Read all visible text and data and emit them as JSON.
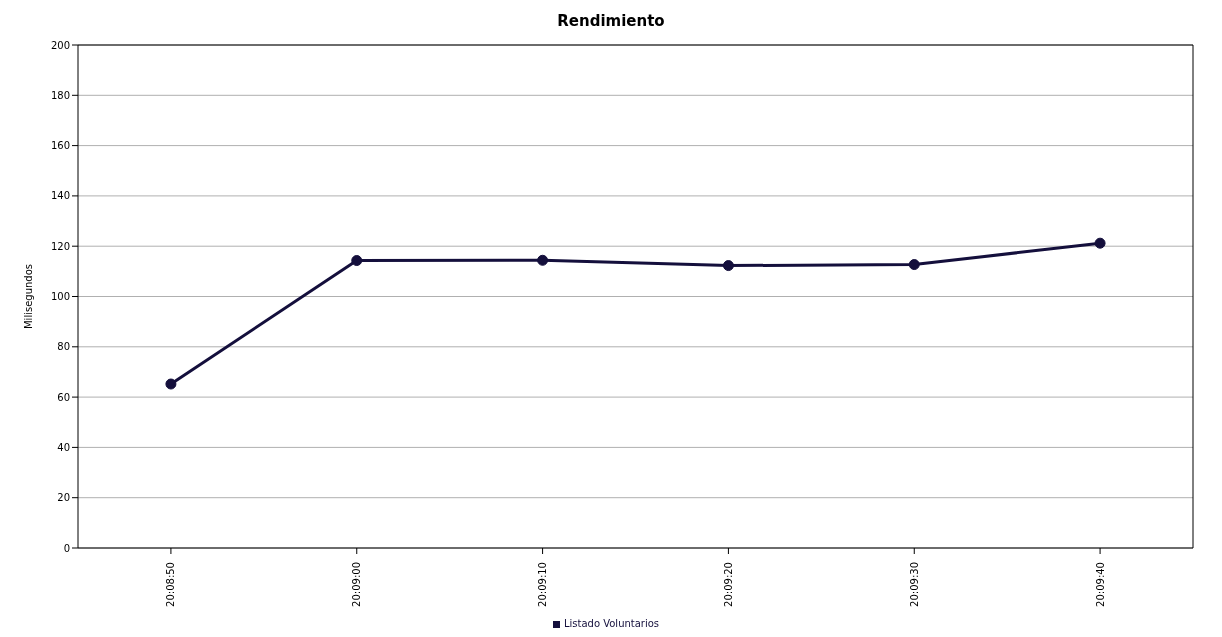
{
  "chart_data": {
    "type": "line",
    "title": "Rendimiento",
    "ylabel": "Milisegundos",
    "categories": [
      "20:08:50",
      "20:09:00",
      "20:09:10",
      "20:09:20",
      "20:09:30",
      "20:09:40"
    ],
    "series": [
      {
        "name": "Listado Voluntarios",
        "color": "#140f3c",
        "values": [
          65.2,
          114.3,
          114.4,
          112.3,
          112.7,
          121.2
        ]
      }
    ],
    "ylim": [
      0,
      200
    ],
    "yticks": [
      0,
      20,
      40,
      60,
      80,
      100,
      120,
      140,
      160,
      180,
      200
    ],
    "grid": "y",
    "legend": "bottom",
    "marker": "circle",
    "line_style": "solid"
  }
}
